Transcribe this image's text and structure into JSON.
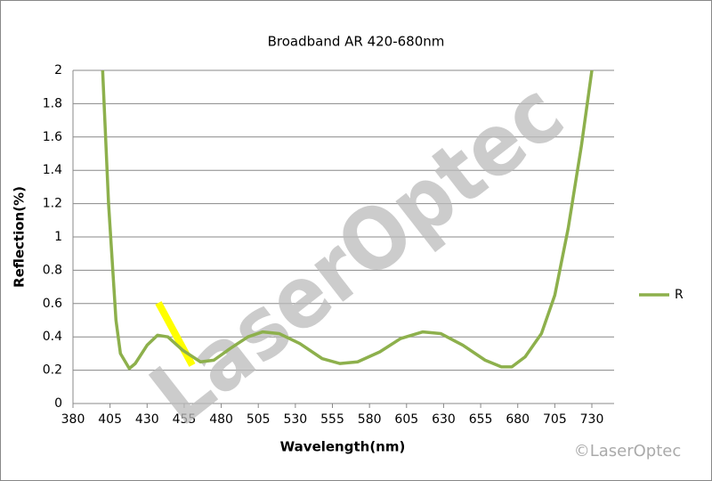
{
  "chart_data": {
    "type": "line",
    "title": "Broadband AR 420-680nm",
    "x_label": "Wavelength(nm)",
    "y_label": "Reflection(%)",
    "watermark": "LaserOptec",
    "copyright": "©LaserOptec",
    "x": [
      400,
      404,
      409,
      412,
      418,
      422,
      430,
      437,
      444,
      454,
      466,
      475,
      486,
      498,
      508,
      519,
      533,
      548,
      560,
      572,
      587,
      601,
      616,
      628,
      643,
      658,
      669,
      676,
      685,
      696,
      705,
      714,
      723,
      730
    ],
    "series": [
      {
        "name": "R",
        "color": "#8db04c",
        "values": [
          2.0,
          1.2,
          0.5,
          0.3,
          0.21,
          0.24,
          0.35,
          0.41,
          0.4,
          0.32,
          0.25,
          0.26,
          0.33,
          0.4,
          0.43,
          0.42,
          0.36,
          0.27,
          0.24,
          0.25,
          0.31,
          0.39,
          0.43,
          0.42,
          0.35,
          0.26,
          0.22,
          0.22,
          0.28,
          0.42,
          0.65,
          1.05,
          1.55,
          2.0
        ]
      }
    ],
    "xlim": [
      380,
      745
    ],
    "xticks": [
      380,
      405,
      430,
      455,
      480,
      505,
      530,
      555,
      580,
      605,
      630,
      655,
      680,
      705,
      730
    ],
    "ylim": [
      0,
      2
    ],
    "yticks": [
      0,
      {
        "value": 0.2,
        "label": "0.2"
      },
      {
        "value": 0.4,
        "label": "0.4"
      },
      {
        "value": 0.6,
        "label": "0.6"
      },
      {
        "value": 0.8,
        "label": "0.8"
      },
      1,
      {
        "value": 1.2,
        "label": "1.2"
      },
      {
        "value": 1.4,
        "label": "1.4"
      },
      {
        "value": 1.6,
        "label": "1.6"
      },
      {
        "value": 1.8,
        "label": "1.8"
      },
      2
    ],
    "grid": true,
    "legend": "right"
  }
}
